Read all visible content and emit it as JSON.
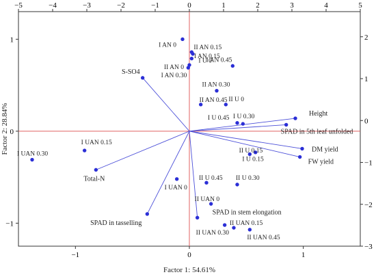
{
  "chart_data": {
    "type": "scatter",
    "xlabel": "Factor 1: 54.61%",
    "ylabel": "Factor 2: 28.84%",
    "bottom_axis": {
      "range": [
        -1.5,
        1.5
      ],
      "ticks": [
        "−1",
        "0",
        "1"
      ],
      "tick_values": [
        -1,
        0,
        1
      ]
    },
    "left_axis": {
      "range": [
        -1.25,
        1.3
      ],
      "ticks": [
        "−1",
        "0",
        "1"
      ],
      "tick_values": [
        -1,
        0,
        1
      ]
    },
    "top_axis": {
      "range": [
        -5,
        5
      ],
      "ticks": [
        "−5",
        "−4",
        "−3",
        "−2",
        "−1",
        "0",
        "1",
        "2",
        "3",
        "4",
        "5"
      ],
      "tick_values": [
        -5,
        -4,
        -3,
        -2,
        -1,
        0,
        1,
        2,
        3,
        4,
        5
      ]
    },
    "right_axis": {
      "range": [
        -3,
        2.6
      ],
      "ticks": [
        "−3",
        "−2",
        "−1",
        "0",
        "1",
        "2"
      ],
      "tick_values": [
        -3,
        -2,
        -1,
        0,
        1,
        2
      ]
    },
    "grid": false,
    "colors": {
      "points": "#2b2fd6",
      "vectors": "#4a4ed8",
      "zero_lines": "#e06060"
    },
    "observations": [
      {
        "label": "I AN 0",
        "x": -0.06,
        "y": 1.0
      },
      {
        "label": "II AN 0.15",
        "x": 0.02,
        "y": 0.86
      },
      {
        "label": "I AN 0.15",
        "x": 0.03,
        "y": 0.84
      },
      {
        "label": "I U 0",
        "x": 0.02,
        "y": 0.79
      },
      {
        "label": "I AN 0.45",
        "x": 0.38,
        "y": 0.71
      },
      {
        "label": "II AN 0",
        "x": 0.0,
        "y": 0.72
      },
      {
        "label": "I AN 0.30",
        "x": -0.01,
        "y": 0.69
      },
      {
        "label": "II AN 0.30",
        "x": 0.24,
        "y": 0.44
      },
      {
        "label": "II AN 0.45",
        "x": 0.1,
        "y": 0.29
      },
      {
        "label": "II U 0",
        "x": 0.32,
        "y": 0.29
      },
      {
        "label": "I U 0.30",
        "x": 0.42,
        "y": 0.09
      },
      {
        "label": "I U 0.45",
        "x": 0.47,
        "y": 0.08
      },
      {
        "label": "II U 0.15",
        "x": 0.58,
        "y": -0.23
      },
      {
        "label": "I U 0.15",
        "x": 0.53,
        "y": -0.25
      },
      {
        "label": "I UAN 0.30",
        "x": -1.38,
        "y": -0.31
      },
      {
        "label": "I UAN 0.15",
        "x": -0.92,
        "y": -0.21
      },
      {
        "label": "I UAN 0",
        "x": -0.11,
        "y": -0.52
      },
      {
        "label": "II U 0.45",
        "x": 0.15,
        "y": -0.56
      },
      {
        "label": "II U 0.30",
        "x": 0.42,
        "y": -0.58
      },
      {
        "label": "II UAN 0",
        "x": 0.19,
        "y": -0.79
      },
      {
        "label": "II UAN 0.15",
        "x": 0.39,
        "y": -1.05
      },
      {
        "label": "II UAN 0.30",
        "x": 0.31,
        "y": -1.02
      },
      {
        "label": "II UAN 0.45",
        "x": 0.53,
        "y": -1.07
      }
    ],
    "variables": [
      {
        "label": "S-SO4",
        "x": -0.41,
        "y": 0.58,
        "anchor": "end"
      },
      {
        "label": "Height",
        "x": 0.93,
        "y": 0.14,
        "anchor": "start"
      },
      {
        "label": "SPAD in 5th leaf unfolded",
        "x": 0.85,
        "y": 0.07,
        "anchor": "start"
      },
      {
        "label": "DM yield",
        "x": 0.99,
        "y": -0.19,
        "anchor": "start"
      },
      {
        "label": "FW yield",
        "x": 0.97,
        "y": -0.28,
        "anchor": "start"
      },
      {
        "label": "Total-N",
        "x": -0.82,
        "y": -0.42,
        "anchor": "start"
      },
      {
        "label": "SPAD in tasselling",
        "x": -0.37,
        "y": -0.9,
        "anchor": "end"
      },
      {
        "label": "SPAD in stem elongation",
        "x": 0.07,
        "y": -0.94,
        "anchor": "start"
      }
    ]
  }
}
